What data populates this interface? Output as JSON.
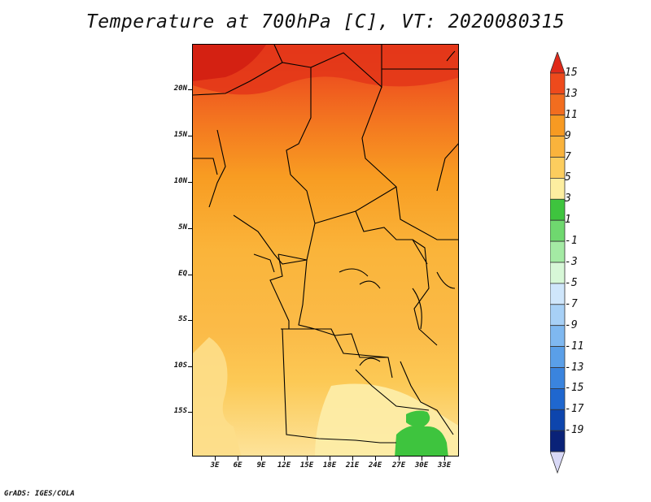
{
  "title": "Temperature at 700hPa [C], VT: 2020080315",
  "credit": "GrADS: IGES/COLA",
  "axes": {
    "y_ticks": [
      "20N",
      "15N",
      "10N",
      "5N",
      "EQ",
      "5S",
      "10S",
      "15S"
    ],
    "x_ticks": [
      "3E",
      "6E",
      "9E",
      "12E",
      "15E",
      "18E",
      "21E",
      "24E",
      "27E",
      "30E",
      "33E"
    ]
  },
  "colorbar": {
    "labels": [
      "15",
      "13",
      "11",
      "9",
      "7",
      "5",
      "3",
      "1",
      "-1",
      "-3",
      "-5",
      "-7",
      "-9",
      "-11",
      "-13",
      "-15",
      "-17",
      "-19"
    ],
    "colors": [
      "#e02a1a",
      "#ee4a1c",
      "#f26d1f",
      "#f79a22",
      "#fab33c",
      "#fccd5e",
      "#fdeea0",
      "#3ec43e",
      "#6fd86f",
      "#a4eaa4",
      "#d7f7d7",
      "#cfe6fb",
      "#a7d0f6",
      "#7fb8f0",
      "#5a9fe8",
      "#3a84de",
      "#1f67cf",
      "#0d45ad",
      "#0a2278",
      "#d8d8f6"
    ]
  },
  "map_regions": {
    "hot_north": "#e33619",
    "green_patch": "#3ec43e"
  }
}
